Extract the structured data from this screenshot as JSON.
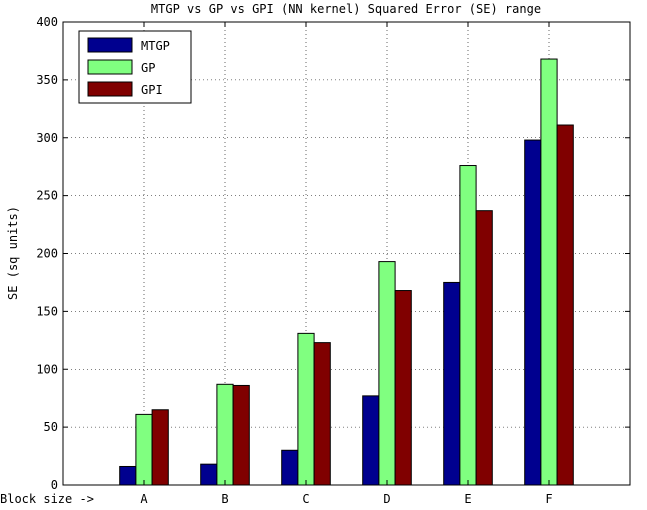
{
  "chart_data": {
    "type": "bar",
    "title": "MTGP vs GP vs GPI (NN kernel) Squared Error (SE) range",
    "xlabel": "Block size ->",
    "ylabel": "SE (sq units)",
    "categories": [
      "A",
      "B",
      "C",
      "D",
      "E",
      "F"
    ],
    "series": [
      {
        "name": "MTGP",
        "color": "#00008f",
        "values": [
          16,
          18,
          30,
          77,
          175,
          298
        ]
      },
      {
        "name": "GP",
        "color": "#80ff80",
        "values": [
          61,
          87,
          131,
          193,
          276,
          368
        ]
      },
      {
        "name": "GPI",
        "color": "#800000",
        "values": [
          65,
          86,
          123,
          168,
          237,
          311
        ]
      }
    ],
    "ylim": [
      0,
      400
    ],
    "yticks": [
      "0",
      "50",
      "100",
      "150",
      "200",
      "250",
      "300",
      "350",
      "400"
    ],
    "grid": true,
    "legend_position": "top-left"
  }
}
